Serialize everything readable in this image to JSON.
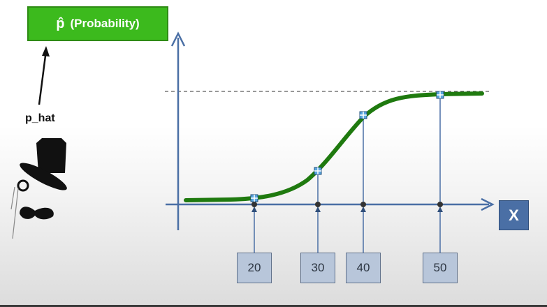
{
  "header_box": {
    "symbol": "p̂",
    "label": "(Probability)"
  },
  "pointer_label": "p_hat",
  "axis": {
    "x_label": "X"
  },
  "chart_data": {
    "type": "line",
    "x": [
      20,
      30,
      40,
      50
    ],
    "tick_labels": [
      "20",
      "30",
      "40",
      "50"
    ],
    "curve": "sigmoid",
    "asymptote": "dashed-upper",
    "values": [
      0.05,
      0.35,
      0.82,
      1.0
    ]
  },
  "colors": {
    "box_green": "#3cba1d",
    "curve_green": "#1f7a0f",
    "axis_blue": "#4a6fa5",
    "tick_box_fill": "#b8c6da",
    "marker_blue": "#5aa7e0"
  },
  "icons": [
    "top-hat-icon",
    "monocle-icon",
    "mustache-icon",
    "plus-marker-icon"
  ]
}
